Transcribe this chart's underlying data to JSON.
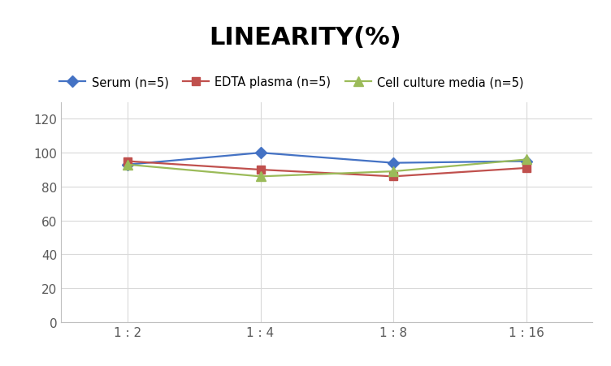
{
  "title": "LINEARITY(%)",
  "x_labels": [
    "1 : 2",
    "1 : 4",
    "1 : 8",
    "1 : 16"
  ],
  "x_positions": [
    0,
    1,
    2,
    3
  ],
  "series": [
    {
      "label": "Serum (n=5)",
      "values": [
        93,
        100,
        94,
        95
      ],
      "color": "#4472C4",
      "marker": "D",
      "markersize": 7,
      "linewidth": 1.6
    },
    {
      "label": "EDTA plasma (n=5)",
      "values": [
        95,
        90,
        86,
        91
      ],
      "color": "#C0504D",
      "marker": "s",
      "markersize": 7,
      "linewidth": 1.6
    },
    {
      "label": "Cell culture media (n=5)",
      "values": [
        93,
        86,
        89,
        96
      ],
      "color": "#9BBB59",
      "marker": "^",
      "markersize": 8,
      "linewidth": 1.6
    }
  ],
  "ylim": [
    0,
    130
  ],
  "yticks": [
    0,
    20,
    40,
    60,
    80,
    100,
    120
  ],
  "grid_color": "#D9D9D9",
  "background_color": "#FFFFFF",
  "title_fontsize": 22,
  "title_fontweight": "bold",
  "legend_fontsize": 10.5,
  "tick_fontsize": 11,
  "tick_color": "#595959"
}
